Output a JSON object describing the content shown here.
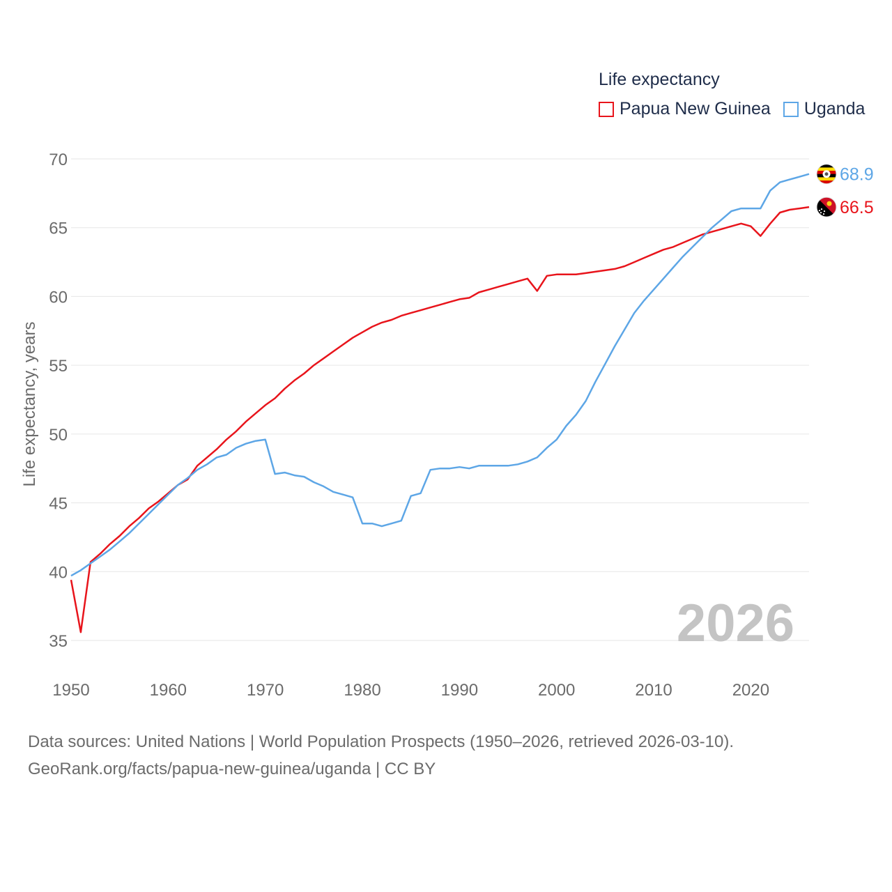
{
  "chart_data": {
    "type": "line",
    "legend_title": "Life expectancy",
    "ylabel": "Life expectancy, years",
    "xlabel": "",
    "year_watermark": "2026",
    "xlim": [
      1950,
      2026
    ],
    "ylim": [
      33,
      71
    ],
    "x_ticks": [
      1950,
      1960,
      1970,
      1980,
      1990,
      2000,
      2010,
      2020
    ],
    "y_ticks": [
      35,
      40,
      45,
      50,
      55,
      60,
      65,
      70
    ],
    "series": [
      {
        "name": "Papua New Guinea",
        "color": "#e8141b",
        "end_label": "66.5",
        "flag": "png",
        "points": [
          [
            1950,
            39.4
          ],
          [
            1951,
            35.6
          ],
          [
            1952,
            40.7
          ],
          [
            1953,
            41.3
          ],
          [
            1954,
            42.0
          ],
          [
            1955,
            42.6
          ],
          [
            1956,
            43.3
          ],
          [
            1957,
            43.9
          ],
          [
            1958,
            44.6
          ],
          [
            1959,
            45.1
          ],
          [
            1960,
            45.7
          ],
          [
            1961,
            46.3
          ],
          [
            1962,
            46.7
          ],
          [
            1963,
            47.7
          ],
          [
            1964,
            48.3
          ],
          [
            1965,
            48.9
          ],
          [
            1966,
            49.6
          ],
          [
            1967,
            50.2
          ],
          [
            1968,
            50.9
          ],
          [
            1969,
            51.5
          ],
          [
            1970,
            52.1
          ],
          [
            1971,
            52.6
          ],
          [
            1972,
            53.3
          ],
          [
            1973,
            53.9
          ],
          [
            1974,
            54.4
          ],
          [
            1975,
            55.0
          ],
          [
            1976,
            55.5
          ],
          [
            1977,
            56.0
          ],
          [
            1978,
            56.5
          ],
          [
            1979,
            57.0
          ],
          [
            1980,
            57.4
          ],
          [
            1981,
            57.8
          ],
          [
            1982,
            58.1
          ],
          [
            1983,
            58.3
          ],
          [
            1984,
            58.6
          ],
          [
            1985,
            58.8
          ],
          [
            1986,
            59.0
          ],
          [
            1987,
            59.2
          ],
          [
            1988,
            59.4
          ],
          [
            1989,
            59.6
          ],
          [
            1990,
            59.8
          ],
          [
            1991,
            59.9
          ],
          [
            1992,
            60.3
          ],
          [
            1993,
            60.5
          ],
          [
            1994,
            60.7
          ],
          [
            1995,
            60.9
          ],
          [
            1996,
            61.1
          ],
          [
            1997,
            61.3
          ],
          [
            1998,
            60.4
          ],
          [
            1999,
            61.5
          ],
          [
            2000,
            61.6
          ],
          [
            2001,
            61.6
          ],
          [
            2002,
            61.6
          ],
          [
            2003,
            61.7
          ],
          [
            2004,
            61.8
          ],
          [
            2005,
            61.9
          ],
          [
            2006,
            62.0
          ],
          [
            2007,
            62.2
          ],
          [
            2008,
            62.5
          ],
          [
            2009,
            62.8
          ],
          [
            2010,
            63.1
          ],
          [
            2011,
            63.4
          ],
          [
            2012,
            63.6
          ],
          [
            2013,
            63.9
          ],
          [
            2014,
            64.2
          ],
          [
            2015,
            64.5
          ],
          [
            2016,
            64.7
          ],
          [
            2017,
            64.9
          ],
          [
            2018,
            65.1
          ],
          [
            2019,
            65.3
          ],
          [
            2020,
            65.1
          ],
          [
            2021,
            64.4
          ],
          [
            2022,
            65.3
          ],
          [
            2023,
            66.1
          ],
          [
            2024,
            66.3
          ],
          [
            2025,
            66.4
          ],
          [
            2026,
            66.5
          ]
        ]
      },
      {
        "name": "Uganda",
        "color": "#5da6e6",
        "end_label": "68.9",
        "flag": "uganda",
        "points": [
          [
            1950,
            39.7
          ],
          [
            1951,
            40.1
          ],
          [
            1952,
            40.6
          ],
          [
            1953,
            41.1
          ],
          [
            1954,
            41.6
          ],
          [
            1955,
            42.2
          ],
          [
            1956,
            42.8
          ],
          [
            1957,
            43.5
          ],
          [
            1958,
            44.2
          ],
          [
            1959,
            44.9
          ],
          [
            1960,
            45.6
          ],
          [
            1961,
            46.3
          ],
          [
            1962,
            46.8
          ],
          [
            1963,
            47.4
          ],
          [
            1964,
            47.8
          ],
          [
            1965,
            48.3
          ],
          [
            1966,
            48.5
          ],
          [
            1967,
            49.0
          ],
          [
            1968,
            49.3
          ],
          [
            1969,
            49.5
          ],
          [
            1970,
            49.6
          ],
          [
            1971,
            47.1
          ],
          [
            1972,
            47.2
          ],
          [
            1973,
            47.0
          ],
          [
            1974,
            46.9
          ],
          [
            1975,
            46.5
          ],
          [
            1976,
            46.2
          ],
          [
            1977,
            45.8
          ],
          [
            1978,
            45.6
          ],
          [
            1979,
            45.4
          ],
          [
            1980,
            43.5
          ],
          [
            1981,
            43.5
          ],
          [
            1982,
            43.3
          ],
          [
            1983,
            43.5
          ],
          [
            1984,
            43.7
          ],
          [
            1985,
            45.5
          ],
          [
            1986,
            45.7
          ],
          [
            1987,
            47.4
          ],
          [
            1988,
            47.5
          ],
          [
            1989,
            47.5
          ],
          [
            1990,
            47.6
          ],
          [
            1991,
            47.5
          ],
          [
            1992,
            47.7
          ],
          [
            1993,
            47.7
          ],
          [
            1994,
            47.7
          ],
          [
            1995,
            47.7
          ],
          [
            1996,
            47.8
          ],
          [
            1997,
            48.0
          ],
          [
            1998,
            48.3
          ],
          [
            1999,
            49.0
          ],
          [
            2000,
            49.6
          ],
          [
            2001,
            50.6
          ],
          [
            2002,
            51.4
          ],
          [
            2003,
            52.4
          ],
          [
            2004,
            53.8
          ],
          [
            2005,
            55.1
          ],
          [
            2006,
            56.4
          ],
          [
            2007,
            57.6
          ],
          [
            2008,
            58.8
          ],
          [
            2009,
            59.7
          ],
          [
            2010,
            60.5
          ],
          [
            2011,
            61.3
          ],
          [
            2012,
            62.1
          ],
          [
            2013,
            62.9
          ],
          [
            2014,
            63.6
          ],
          [
            2015,
            64.3
          ],
          [
            2016,
            65.0
          ],
          [
            2017,
            65.6
          ],
          [
            2018,
            66.2
          ],
          [
            2019,
            66.4
          ],
          [
            2020,
            66.4
          ],
          [
            2021,
            66.4
          ],
          [
            2022,
            67.7
          ],
          [
            2023,
            68.3
          ],
          [
            2024,
            68.5
          ],
          [
            2025,
            68.7
          ],
          [
            2026,
            68.9
          ]
        ]
      }
    ]
  },
  "source": {
    "line1": "Data sources: United Nations | World Population Prospects (1950–2026, retrieved 2026-03-10).",
    "line2": "GeoRank.org/facts/papua-new-guinea/uganda | CC BY"
  }
}
